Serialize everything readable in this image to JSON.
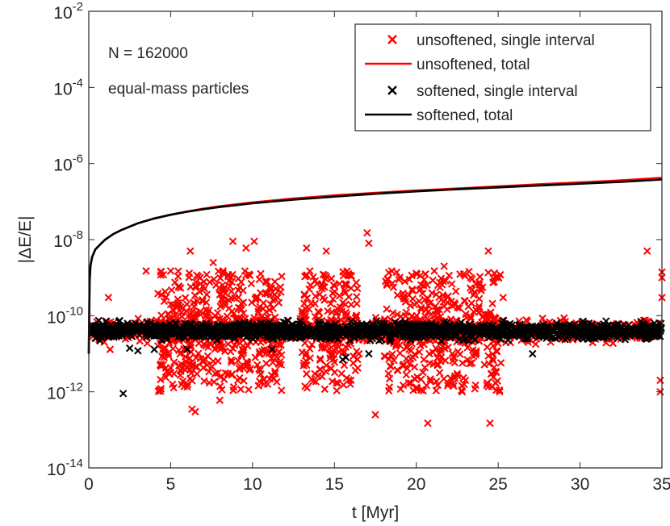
{
  "chart_data": {
    "type": "scatter",
    "title": "",
    "xlabel": "t [Myr]",
    "ylabel": "|ΔE/E|",
    "xlim": [
      0,
      35
    ],
    "ylim_exp": [
      -14,
      -2
    ],
    "y_scale": "log",
    "x_ticks": [
      "0",
      "5",
      "10",
      "15",
      "20",
      "25",
      "30",
      "35"
    ],
    "y_ticks": [
      {
        "base": "10",
        "exp": "-14"
      },
      {
        "base": "10",
        "exp": "-12"
      },
      {
        "base": "10",
        "exp": "-10"
      },
      {
        "base": "10",
        "exp": "-8"
      },
      {
        "base": "10",
        "exp": "-6"
      },
      {
        "base": "10",
        "exp": "-4"
      },
      {
        "base": "10",
        "exp": "-2"
      }
    ],
    "annotations": [
      "N = 162000",
      "equal-mass particles"
    ],
    "legend_position": "top-right",
    "colors": {
      "unsoftened": "#ff0000",
      "softened": "#000000",
      "axis": "#262626"
    },
    "series": [
      {
        "name": "unsoftened, single interval",
        "kind": "markers",
        "marker": "x",
        "color": "#ff0000",
        "outliers": [
          [
            1.2,
            3e-10
          ],
          [
            1.3,
            1.3e-11
          ],
          [
            3.5,
            1.5e-09
          ],
          [
            4.4,
            1.4e-09
          ],
          [
            4.6,
            8e-12
          ],
          [
            5.0,
            1.5e-09
          ],
          [
            5.2,
            3e-12
          ],
          [
            5.5,
            6e-10
          ],
          [
            6.2,
            5e-09
          ],
          [
            6.3,
            3.5e-13
          ],
          [
            6.5,
            3e-13
          ],
          [
            6.8,
            1e-09
          ],
          [
            7.2,
            1.2e-09
          ],
          [
            7.6,
            2.5e-09
          ],
          [
            8.0,
            6e-13
          ],
          [
            8.5,
            3e-12
          ],
          [
            8.8,
            9e-09
          ],
          [
            9.1,
            2e-12
          ],
          [
            9.6,
            6e-09
          ],
          [
            10.1,
            9e-09
          ],
          [
            10.4,
            4e-12
          ],
          [
            11.3,
            1e-11
          ],
          [
            13.3,
            6e-09
          ],
          [
            13.5,
            1.5e-09
          ],
          [
            13.8,
            3e-12
          ],
          [
            14.5,
            5e-09
          ],
          [
            15.0,
            6e-12
          ],
          [
            15.6,
            5e-12
          ],
          [
            16.0,
            2e-12
          ],
          [
            16.5,
            1e-11
          ],
          [
            17.0,
            1.5e-08
          ],
          [
            17.1,
            8e-09
          ],
          [
            17.5,
            2.5e-13
          ],
          [
            18.3,
            3e-12
          ],
          [
            18.5,
            1.5e-09
          ],
          [
            19.3,
            8e-10
          ],
          [
            20.0,
            1.3e-09
          ],
          [
            20.8,
            1e-11
          ],
          [
            21.1,
            1.5e-09
          ],
          [
            21.4,
            1e-11
          ],
          [
            21.7,
            2e-09
          ],
          [
            22.2,
            1e-11
          ],
          [
            22.5,
            3e-12
          ],
          [
            22.8,
            1e-12
          ],
          [
            23.0,
            2e-12
          ],
          [
            24.3,
            1.5e-12
          ],
          [
            24.4,
            5e-09
          ],
          [
            24.5,
            1.5e-13
          ],
          [
            24.6,
            3e-12
          ],
          [
            25.3,
            3e-10
          ],
          [
            34.1,
            5e-09
          ],
          [
            35.0,
            1e-09
          ],
          [
            35.0,
            1.4e-09
          ],
          [
            34.9,
            2e-12
          ],
          [
            34.9,
            1e-12
          ],
          [
            35.0,
            3e-10
          ],
          [
            20.7,
            1.5e-13
          ],
          [
            6.0,
            2e-10
          ],
          [
            8.2,
            1.5e-09
          ],
          [
            19.8,
            8e-12
          ]
        ]
      },
      {
        "name": "unsoftened, total",
        "kind": "line",
        "color": "#ff0000",
        "points": [
          [
            0.0,
            1e-11
          ],
          [
            0.05,
            8e-10
          ],
          [
            0.1,
            2e-09
          ],
          [
            0.2,
            3.5e-09
          ],
          [
            0.4,
            5.5e-09
          ],
          [
            0.7,
            7.5e-09
          ],
          [
            1.0,
            1e-08
          ],
          [
            1.5,
            1.4e-08
          ],
          [
            2.0,
            1.8e-08
          ],
          [
            3.0,
            2.7e-08
          ],
          [
            4.0,
            3.6e-08
          ],
          [
            5.0,
            4.5e-08
          ],
          [
            6.0,
            5.5e-08
          ],
          [
            7.0,
            6.5e-08
          ],
          [
            8.0,
            7.5e-08
          ],
          [
            10.0,
            9.5e-08
          ],
          [
            12.5,
            1.2e-07
          ],
          [
            15.0,
            1.45e-07
          ],
          [
            17.5,
            1.7e-07
          ],
          [
            20.0,
            1.95e-07
          ],
          [
            22.5,
            2.2e-07
          ],
          [
            25.0,
            2.5e-07
          ],
          [
            27.5,
            2.85e-07
          ],
          [
            30.0,
            3.2e-07
          ],
          [
            32.5,
            3.6e-07
          ],
          [
            35.0,
            4.2e-07
          ]
        ]
      },
      {
        "name": "softened, single interval",
        "kind": "markers",
        "marker": "x",
        "color": "#000000",
        "outliers": [
          [
            2.1,
            9e-13
          ],
          [
            2.5,
            1.4e-11
          ],
          [
            3.0,
            1.2e-11
          ],
          [
            4.0,
            1.3e-11
          ],
          [
            6.0,
            1.3e-11
          ],
          [
            11.2,
            1.3e-11
          ],
          [
            15.5,
            7e-12
          ],
          [
            17.1,
            1e-11
          ],
          [
            27.1,
            1e-11
          ],
          [
            15.7,
            8e-12
          ]
        ]
      },
      {
        "name": "softened, total",
        "kind": "line",
        "color": "#000000",
        "points": [
          [
            0.0,
            1e-11
          ],
          [
            0.05,
            8e-10
          ],
          [
            0.1,
            2e-09
          ],
          [
            0.2,
            3.5e-09
          ],
          [
            0.4,
            5.5e-09
          ],
          [
            0.7,
            7.5e-09
          ],
          [
            1.0,
            1e-08
          ],
          [
            1.5,
            1.4e-08
          ],
          [
            2.0,
            1.8e-08
          ],
          [
            3.0,
            2.7e-08
          ],
          [
            4.0,
            3.6e-08
          ],
          [
            5.0,
            4.5e-08
          ],
          [
            6.0,
            5.4e-08
          ],
          [
            7.0,
            6.3e-08
          ],
          [
            8.0,
            7.2e-08
          ],
          [
            10.0,
            9e-08
          ],
          [
            12.5,
            1.12e-07
          ],
          [
            15.0,
            1.35e-07
          ],
          [
            17.5,
            1.6e-07
          ],
          [
            20.0,
            1.85e-07
          ],
          [
            22.5,
            2.1e-07
          ],
          [
            25.0,
            2.35e-07
          ],
          [
            27.5,
            2.65e-07
          ],
          [
            30.0,
            2.95e-07
          ],
          [
            32.5,
            3.3e-07
          ],
          [
            35.0,
            3.8e-07
          ]
        ]
      }
    ],
    "clusters": {
      "unsoftened_band": {
        "x": [
          0.2,
          35
        ],
        "y_center": 4e-11,
        "y_spread_dex": 0.25,
        "count": 700
      },
      "unsoftened_active": [
        {
          "x": [
            4.2,
            11.8
          ],
          "y_min": 1e-12,
          "y_max": 1.5e-09,
          "count": 520
        },
        {
          "x": [
            13.0,
            16.5
          ],
          "y_min": 1e-12,
          "y_max": 1.5e-09,
          "count": 220
        },
        {
          "x": [
            18.0,
            25.2
          ],
          "y_min": 1e-12,
          "y_max": 1.5e-09,
          "count": 440
        }
      ],
      "softened_band": {
        "x": [
          0.2,
          35
        ],
        "y_center": 4e-11,
        "y_spread_dex": 0.18,
        "count": 1500
      }
    }
  }
}
